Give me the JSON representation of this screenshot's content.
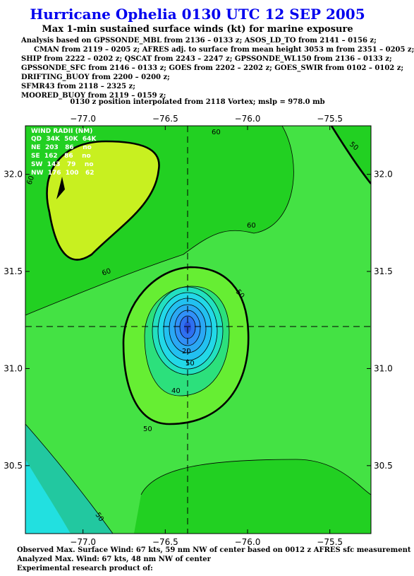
{
  "title": "Hurricane Ophelia 0130 UTC 12 SEP 2005",
  "subtitle": "Max 1-min sustained surface winds (kt) for marine exposure",
  "analysis_lines": [
    "Analysis based on  GPSSONDE_MBL from 2136 – 0133 z;  ASOS_LD_TO from 2141 – 0156 z;",
    "CMAN from 2119 – 0205 z;  AFRES adj. to surface from mean height 3053 m from 2351 – 0205 z;",
    "SHIP from 2222 – 0202 z;  QSCAT from 2243 – 2247 z;  GPSSONDE_WL150 from 2136 – 0133 z;",
    "GPSSONDE_SFC from 2146 – 0133 z;  GOES from 2202 – 2202 z;  GOES_SWIR from 0102 – 0102 z;",
    "DRIFTING_BUOY from 2200 – 0200 z;",
    "SFMR43 from 2118 – 2325 z;",
    "MOORED_BUOY from 2119 – 0159 z;"
  ],
  "position_note": "0130 z position interpolated from 2118 Vortex; mslp = 978.0 mb",
  "map": {
    "x_ticks": [
      -77.0,
      -76.5,
      -76.0,
      -75.5
    ],
    "x_tick_labels": [
      "−77.0",
      "−76.5",
      "−76.0",
      "−75.5"
    ],
    "y_ticks": [
      32.0,
      31.5,
      31.0,
      30.5
    ],
    "y_tick_labels": [
      "32.0",
      "31.5",
      "31.0",
      "30.5"
    ],
    "lon_range": [
      -77.35,
      -75.25
    ],
    "lat_range": [
      30.15,
      32.25
    ],
    "center": {
      "lon": -76.29,
      "lat": 31.14
    },
    "contour_labels": [
      "60",
      "50",
      "60",
      "60",
      "60",
      "50",
      "40",
      "50",
      "20",
      "50",
      "50"
    ]
  },
  "wind_radii": {
    "header": "WIND RADII (NM)",
    "columns": "QD  34K  50K  64K",
    "rows": [
      "NE  203   86    no",
      "SE  162   86    no",
      "SW  143   79    no",
      "NW  176  100   62"
    ]
  },
  "footer": [
    "Observed Max. Surface Wind: 67 kts, 59 nm NW of center based on 0012 z AFRES sfc measurement",
    "Analyzed Max. Wind: 67 kts, 48 nm NW of center",
    "Experimental research product of:"
  ]
}
